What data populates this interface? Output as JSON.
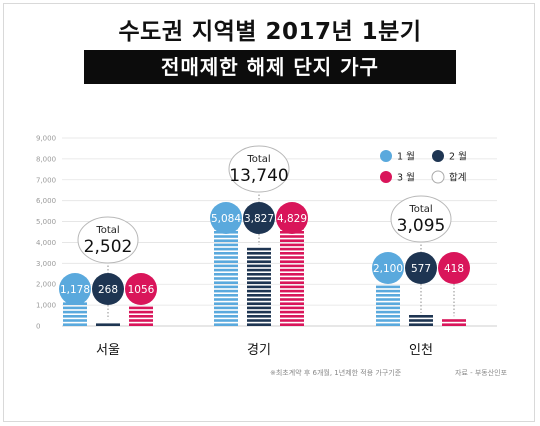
{
  "title": "수도권 지역별 2017년 1분기",
  "subtitle": "전매제한 해제 단지 가구",
  "footnote": "※최초계약 후 6개월, 1년제한 적용 가구기준",
  "source": "자료 - 부동산인포",
  "legend": [
    {
      "label": "1 월",
      "color": "#5aa9dd",
      "style": "filled"
    },
    {
      "label": "2 월",
      "color": "#1e3552",
      "style": "filled"
    },
    {
      "label": "3 월",
      "color": "#d9155a",
      "style": "filled"
    },
    {
      "label": "합계",
      "color": "#ffffff",
      "style": "outline"
    }
  ],
  "chart_data": {
    "type": "bar",
    "categories": [
      "서울",
      "경기",
      "인천"
    ],
    "series": [
      {
        "name": "1 월",
        "color": "#5aa9dd",
        "values": [
          1178,
          5084,
          2100
        ],
        "labels": [
          "1,178",
          "5,084",
          "2,100"
        ]
      },
      {
        "name": "2 월",
        "color": "#1e3552",
        "values": [
          268,
          3827,
          577
        ],
        "labels": [
          "268",
          "3,827",
          "577"
        ]
      },
      {
        "name": "3 월",
        "color": "#d9155a",
        "values": [
          1056,
          4829,
          418
        ],
        "labels": [
          "1056",
          "4,829",
          "418"
        ]
      }
    ],
    "totals": [
      {
        "caption": "Total",
        "value": 2502,
        "label": "2,502"
      },
      {
        "caption": "Total",
        "value": 13740,
        "label": "13,740"
      },
      {
        "caption": "Total",
        "value": 3095,
        "label": "3,095"
      }
    ],
    "yticks": [
      "0",
      "1,000",
      "2,000",
      "3,000",
      "4,000",
      "5,000",
      "6,000",
      "7,000",
      "8,000",
      "9,000"
    ],
    "ylim": [
      0,
      9000
    ],
    "grid": true
  }
}
